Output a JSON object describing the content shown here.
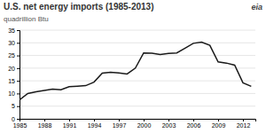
{
  "chart_data": {
    "type": "line",
    "title": "U.S. net energy imports (1985-2013)",
    "subtitle": "quadrillion  Btu",
    "annotations": [
      "eia"
    ],
    "x": [
      1985,
      1986,
      1987,
      1988,
      1989,
      1990,
      1991,
      1992,
      1993,
      1994,
      1995,
      1996,
      1997,
      1998,
      1999,
      2000,
      2001,
      2002,
      2003,
      2004,
      2005,
      2006,
      2007,
      2008,
      2009,
      2010,
      2011,
      2012,
      2013
    ],
    "values": [
      7.5,
      10.0,
      10.7,
      11.2,
      11.7,
      11.5,
      12.7,
      12.9,
      13.1,
      14.5,
      18.0,
      18.4,
      18.1,
      17.7,
      20.0,
      26.0,
      25.9,
      25.4,
      25.8,
      26.0,
      27.9,
      29.8,
      30.3,
      29.0,
      22.5,
      22.0,
      21.2,
      14.2,
      12.8
    ],
    "color": "#1a1a1a",
    "xlim": [
      1985,
      2013.5
    ],
    "xticks": [
      1985,
      1988,
      1991,
      1994,
      1997,
      2000,
      2003,
      2006,
      2009,
      2012
    ],
    "ylim": [
      0,
      35
    ],
    "yticks": [
      0,
      5,
      10,
      15,
      20,
      25,
      30,
      35
    ],
    "grid": true
  }
}
